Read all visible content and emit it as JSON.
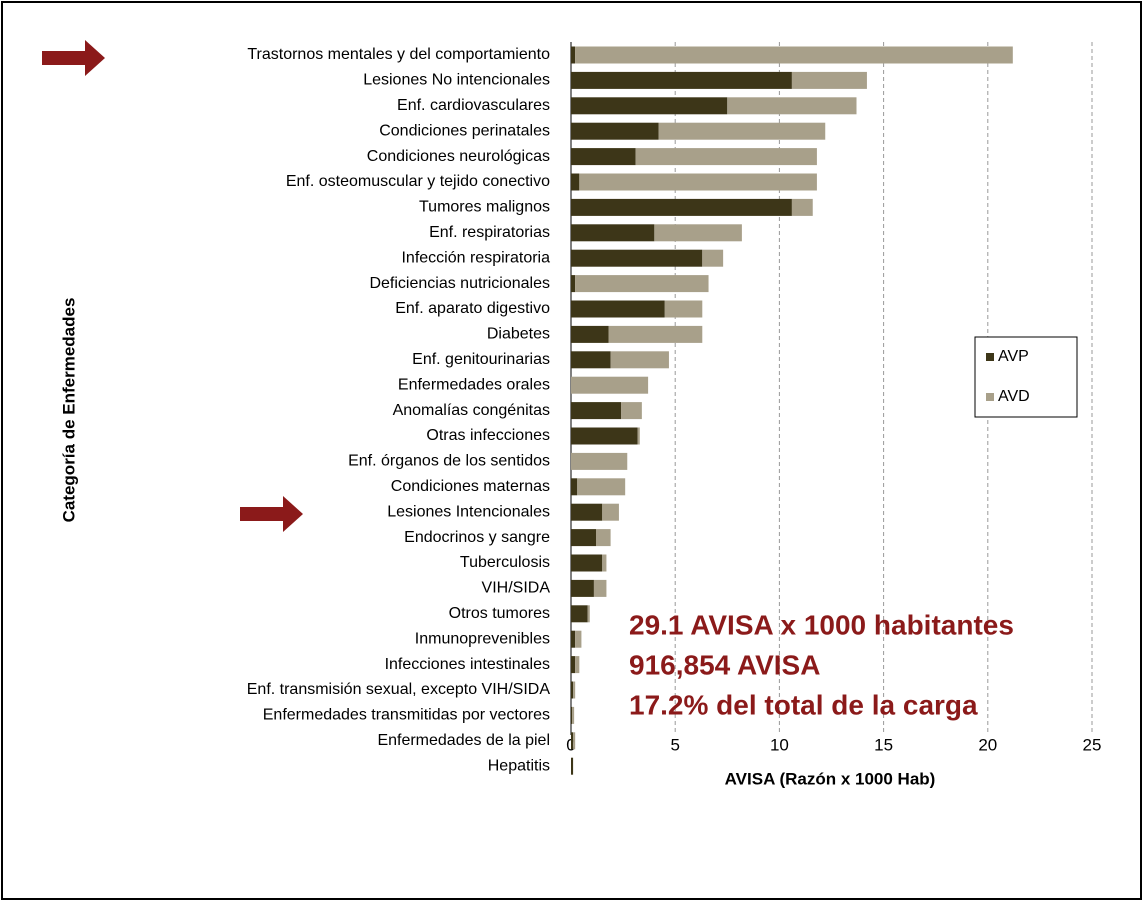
{
  "chart_data": {
    "type": "stacked-bar-horizontal",
    "x_label": "AVISA (Razón x 1000 Hab)",
    "y_label": "Categoría de Enfermedades",
    "categories": [
      "Trastornos mentales y del comportamiento",
      "Lesiones No intencionales",
      "Enf. cardiovasculares",
      "Condiciones perinatales",
      "Condiciones neurológicas",
      "Enf. osteomuscular y tejido conectivo",
      "Tumores malignos",
      "Enf. respiratorias",
      "Infección respiratoria",
      "Deficiencias nutricionales",
      "Enf. aparato digestivo",
      "Diabetes",
      "Enf. genitourinarias",
      "Enfermedades orales",
      "Anomalías congénitas",
      "Otras infecciones",
      "Enf. órganos de los sentidos",
      "Condiciones maternas",
      "Lesiones Intencionales",
      "Endocrinos y sangre",
      "Tuberculosis",
      "VIH/SIDA",
      "Otros tumores",
      "Inmunoprevenibles",
      "Infecciones intestinales",
      "Enf. transmisión sexual, excepto VIH/SIDA",
      "Enfermedades transmitidas por vectores",
      "Enfermedades de la piel",
      "Hepatitis"
    ],
    "series": [
      {
        "name": "AVP",
        "color": "#3d3618",
        "values": [
          0.2,
          10.6,
          7.5,
          4.2,
          3.1,
          0.4,
          10.6,
          4.0,
          6.3,
          0.2,
          4.5,
          1.8,
          1.9,
          0,
          2.4,
          3.2,
          0,
          0.3,
          1.5,
          1.2,
          1.5,
          1.1,
          0.8,
          0.2,
          0.2,
          0.1,
          0.05,
          0.1,
          0.1
        ]
      },
      {
        "name": "AVD",
        "color": "#a8a08a",
        "values": [
          21.0,
          3.6,
          6.2,
          8.0,
          8.7,
          11.4,
          1.0,
          4.2,
          1.0,
          6.4,
          1.8,
          4.5,
          2.8,
          3.7,
          1.0,
          0.1,
          2.7,
          2.3,
          0.8,
          0.7,
          0.2,
          0.6,
          0.1,
          0.3,
          0.2,
          0.1,
          0.1,
          0.1,
          0
        ]
      }
    ],
    "xlim": [
      0,
      25
    ],
    "xticks": [
      0,
      5,
      10,
      15,
      20,
      25
    ],
    "grid": true,
    "legend": "right",
    "annotations": [
      "29.1 AVISA x 1000 habitantes",
      "916,854  AVISA",
      "17.2%  del total de la carga"
    ]
  }
}
